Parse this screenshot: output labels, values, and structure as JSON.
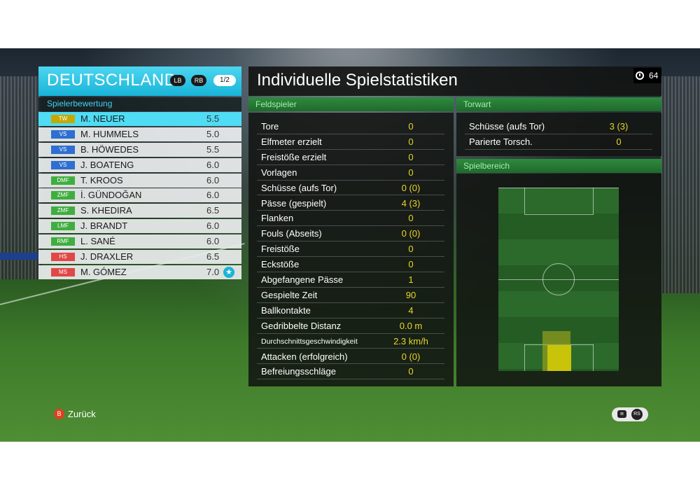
{
  "team": {
    "name": "DEUTSCHLAND",
    "lb_label": "LB",
    "rb_label": "RB",
    "page": "1/2",
    "ratings_title": "Spielerbewertung"
  },
  "players": [
    {
      "pos": "TW",
      "group": "gk",
      "name": "M. NEUER",
      "rating": "5.5",
      "active": true
    },
    {
      "pos": "VS",
      "group": "df",
      "name": "M. HUMMELS",
      "rating": "5.0"
    },
    {
      "pos": "VS",
      "group": "df",
      "name": "B. HÖWEDES",
      "rating": "5.5"
    },
    {
      "pos": "VS",
      "group": "df",
      "name": "J. BOATENG",
      "rating": "6.0"
    },
    {
      "pos": "DMF",
      "group": "mf",
      "name": "T. KROOS",
      "rating": "6.0"
    },
    {
      "pos": "ZMF",
      "group": "mf",
      "name": "İ. GÜNDOĞAN",
      "rating": "6.0"
    },
    {
      "pos": "ZMF",
      "group": "mf",
      "name": "S. KHEDIRA",
      "rating": "6.5"
    },
    {
      "pos": "LMF",
      "group": "mf",
      "name": "J. BRANDT",
      "rating": "6.0"
    },
    {
      "pos": "RMF",
      "group": "mf",
      "name": "L. SANÉ",
      "rating": "6.0"
    },
    {
      "pos": "HS",
      "group": "fw",
      "name": "J. DRAXLER",
      "rating": "6.5"
    },
    {
      "pos": "MS",
      "group": "fw",
      "name": "M. GÓMEZ",
      "rating": "7.0",
      "star": true
    }
  ],
  "stats": {
    "title": "Individuelle Spielstatistiken",
    "timer": "64",
    "field_title": "Feldspieler",
    "field_rows": [
      {
        "label": "Tore",
        "value": "0"
      },
      {
        "label": "Elfmeter erzielt",
        "value": "0"
      },
      {
        "label": "Freistöße erzielt",
        "value": "0"
      },
      {
        "label": "Vorlagen",
        "value": "0"
      },
      {
        "label": "Schüsse (aufs Tor)",
        "value": "0 (0)"
      },
      {
        "label": "Pässe (gespielt)",
        "value": "4 (3)"
      },
      {
        "label": "Flanken",
        "value": "0"
      },
      {
        "label": "Fouls (Abseits)",
        "value": "0 (0)"
      },
      {
        "label": "Freistöße",
        "value": "0"
      },
      {
        "label": "Eckstöße",
        "value": "0"
      },
      {
        "label": "Abgefangene Pässe",
        "value": "1"
      },
      {
        "label": "Gespielte Zeit",
        "value": "90"
      },
      {
        "label": "Ballkontakte",
        "value": "4"
      },
      {
        "label": "Gedribbelte Distanz",
        "value": "0.0 m"
      },
      {
        "label": "Durchschnittsgeschwindigkeit",
        "value": "2.3 km/h",
        "small": true
      },
      {
        "label": "Attacken (erfolgreich)",
        "value": "0 (0)"
      },
      {
        "label": "Befreiungsschläge",
        "value": "0"
      }
    ],
    "gk_title": "Torwart",
    "gk_rows": [
      {
        "label": "Schüsse (aufs Tor)",
        "value": "3 (3)"
      },
      {
        "label": "Parierte Torsch.",
        "value": "0"
      }
    ],
    "area_title": "Spielbereich"
  },
  "controls": {
    "back_key": "B",
    "back_label": "Zurück",
    "rs_key": "RS"
  },
  "colors": {
    "accent": "#18b4d8",
    "value": "#e8d72a",
    "section": "#2f8a3d"
  }
}
